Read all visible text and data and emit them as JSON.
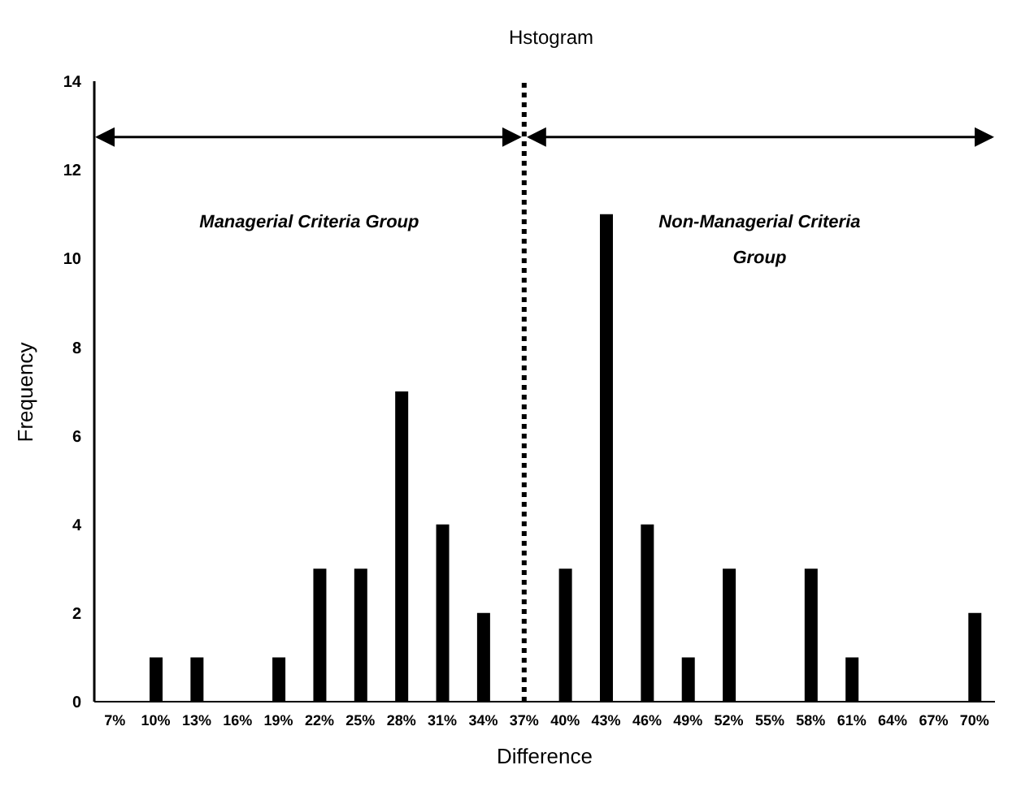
{
  "chart_data": {
    "type": "bar",
    "title": "Hstogram",
    "xlabel": "Difference",
    "ylabel": "Frequency",
    "categories": [
      "7%",
      "10%",
      "13%",
      "16%",
      "19%",
      "22%",
      "25%",
      "28%",
      "31%",
      "34%",
      "37%",
      "40%",
      "43%",
      "46%",
      "49%",
      "52%",
      "55%",
      "58%",
      "61%",
      "64%",
      "67%",
      "70%"
    ],
    "values": [
      0,
      1,
      1,
      0,
      1,
      3,
      3,
      7,
      4,
      2,
      0,
      3,
      11,
      4,
      1,
      3,
      0,
      3,
      1,
      0,
      0,
      2
    ],
    "color": "#000000",
    "ylim": [
      0,
      14
    ],
    "yticks": [
      0,
      2,
      4,
      6,
      8,
      10,
      12,
      14
    ],
    "grid": false,
    "legend": false,
    "ref_lines": [
      {
        "axis": "x",
        "value": "37%",
        "line_style": "dotted",
        "color": "#000000"
      }
    ],
    "annotations": [
      "Managerial Criteria Group",
      "Non-Managerial Criteria Group"
    ]
  }
}
